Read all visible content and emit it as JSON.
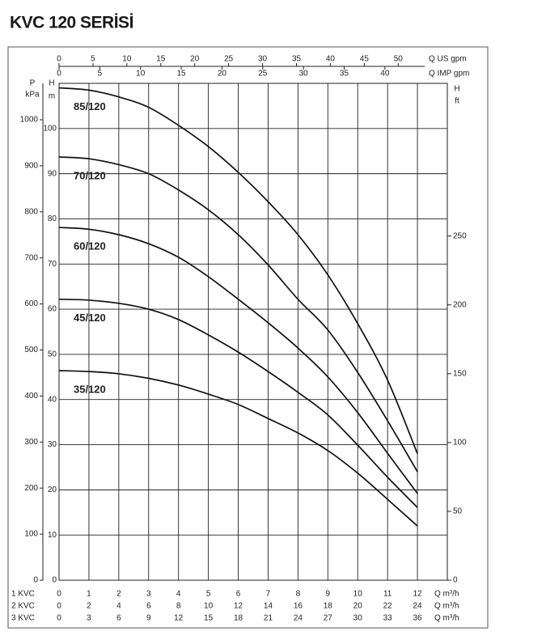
{
  "chart_data": {
    "type": "line",
    "title": "KVC 120 SERİSİ",
    "x": [
      0,
      1,
      2,
      3,
      4,
      5,
      6,
      7,
      8,
      9,
      10,
      11,
      12
    ],
    "xlim": [
      0,
      13
    ],
    "xticks": [
      0,
      1,
      2,
      3,
      4,
      5,
      6,
      7,
      8,
      9,
      10,
      11,
      12
    ],
    "x_row_label": "1 KVC",
    "x_label": "Q m³/h",
    "x_axes_extra": [
      {
        "row_label": "2 KVC",
        "label": "Q m³/h",
        "lim": [
          0,
          26
        ],
        "ticks": [
          0,
          2,
          4,
          6,
          8,
          10,
          12,
          14,
          16,
          18,
          20,
          22,
          24
        ]
      },
      {
        "row_label": "3 KVC",
        "label": "Q m³/h",
        "lim": [
          0,
          39
        ],
        "ticks": [
          0,
          3,
          6,
          9,
          12,
          15,
          18,
          21,
          24,
          27,
          30,
          33,
          36
        ]
      }
    ],
    "top_axes": [
      {
        "label": "Q US gpm",
        "lim": [
          0,
          57.24
        ],
        "ticks": [
          0,
          5,
          10,
          15,
          20,
          25,
          30,
          35,
          40,
          45,
          50
        ]
      },
      {
        "label": "Q IMP gpm",
        "lim": [
          0,
          47.66
        ],
        "ticks": [
          0,
          5,
          10,
          15,
          20,
          25,
          30,
          35,
          40
        ]
      }
    ],
    "y_label": "H",
    "y_unit": "m",
    "ylim": [
      0,
      110
    ],
    "yticks": [
      0,
      10,
      20,
      30,
      40,
      50,
      60,
      70,
      80,
      90,
      100
    ],
    "p_label": "P",
    "p_unit": "kPa",
    "plim": [
      0,
      1079.1
    ],
    "pticks": [
      0,
      100,
      200,
      300,
      400,
      500,
      600,
      700,
      800,
      900,
      1000
    ],
    "y2_label": "H",
    "y2_unit": "ft",
    "y2lim": [
      0,
      360.9
    ],
    "y2ticks": [
      0,
      50,
      100,
      150,
      200,
      250
    ],
    "grid": true,
    "series": [
      {
        "name": "85/120",
        "color": "#111111",
        "values": [
          109,
          108.5,
          107,
          104.7,
          100.7,
          96,
          90.3,
          83.8,
          76.5,
          67.6,
          56.8,
          44.3,
          28
        ]
      },
      {
        "name": "70/120",
        "color": "#111111",
        "values": [
          93.7,
          93.3,
          92,
          90,
          86.4,
          82,
          76.5,
          69.8,
          62.2,
          55.4,
          46,
          35.3,
          24
        ]
      },
      {
        "name": "60/120",
        "color": "#111111",
        "values": [
          78.1,
          77.7,
          76.5,
          74.5,
          71.5,
          67.2,
          62.2,
          57,
          51.4,
          45,
          37.1,
          28.1,
          19.2
        ]
      },
      {
        "name": "45/120",
        "color": "#111111",
        "values": [
          62.2,
          62,
          61.3,
          60,
          57.7,
          54.3,
          50.5,
          46.2,
          41.6,
          36.6,
          29.9,
          22.8,
          16.1
        ]
      },
      {
        "name": "35/120",
        "color": "#111111",
        "values": [
          46.4,
          46.2,
          45.7,
          44.7,
          43.2,
          41.2,
          38.9,
          35.8,
          32.6,
          28.7,
          23.7,
          17.9,
          12
        ]
      }
    ]
  }
}
